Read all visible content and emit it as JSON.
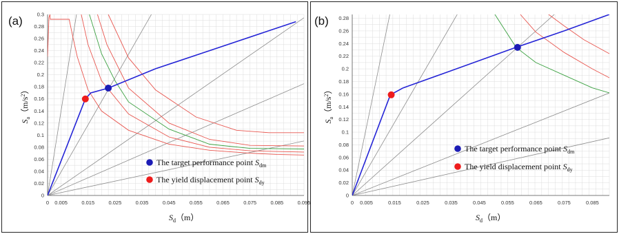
{
  "chart_data": [
    {
      "type": "line",
      "panel_label": "(a)",
      "xlabel_main": "S",
      "xlabel_sub": "d",
      "xlabel_unit": "（m）",
      "ylabel_main": "S",
      "ylabel_sub": "a",
      "ylabel_unit": "（m/s",
      "ylabel_sup": "2",
      "ylabel_close": "）",
      "xlim": [
        0,
        0.095
      ],
      "ylim": [
        0,
        0.3
      ],
      "x_ticks": [
        "0",
        "0.005",
        "0.015",
        "0.025",
        "0.035",
        "0.045",
        "0.055",
        "0.065",
        "0.075",
        "0.085",
        "0.095"
      ],
      "x_tick_values": [
        0,
        0.005,
        0.015,
        0.025,
        0.035,
        0.045,
        0.055,
        0.065,
        0.075,
        0.085,
        0.095
      ],
      "y_ticks": [
        "0",
        "0.02",
        "0.04",
        "0.06",
        "0.08",
        "0.1",
        "0.12",
        "0.14",
        "0.16",
        "0.18",
        "0.2",
        "0.22",
        "0.24",
        "0.26",
        "0.28",
        "0.3"
      ],
      "y_tick_values": [
        0,
        0.02,
        0.04,
        0.06,
        0.08,
        0.1,
        0.12,
        0.14,
        0.16,
        0.18,
        0.2,
        0.22,
        0.24,
        0.26,
        0.28,
        0.3
      ],
      "grid": true,
      "period_lines": {
        "color": "#8c8c8c",
        "slopes": [
          0.95,
          28,
          7.8,
          3.1,
          1.95
        ]
      },
      "demand_curves": [
        {
          "color": "#e8564f",
          "x": [
            0,
            0.0005,
            0.0009,
            0.001,
            0.002,
            0.004,
            0.008,
            0.0095,
            0.011,
            0.015,
            0.02,
            0.03,
            0.045,
            0.06,
            0.075,
            0.085,
            0.095
          ],
          "y": [
            0.23,
            0.295,
            0.3,
            0.292,
            0.292,
            0.292,
            0.292,
            0.26,
            0.23,
            0.175,
            0.14,
            0.108,
            0.085,
            0.075,
            0.07,
            0.068,
            0.067
          ]
        },
        {
          "color": "#e8564f",
          "x": [
            0.0125,
            0.015,
            0.02,
            0.03,
            0.045,
            0.06,
            0.075,
            0.095
          ],
          "y": [
            0.3,
            0.25,
            0.19,
            0.135,
            0.097,
            0.08,
            0.074,
            0.072
          ]
        },
        {
          "color": "#3aa040",
          "x": [
            0.0155,
            0.02,
            0.025,
            0.03,
            0.045,
            0.06,
            0.075,
            0.095
          ],
          "y": [
            0.3,
            0.235,
            0.19,
            0.155,
            0.11,
            0.085,
            0.078,
            0.077
          ]
        },
        {
          "color": "#e8564f",
          "x": [
            0.0185,
            0.022,
            0.03,
            0.045,
            0.06,
            0.075,
            0.095
          ],
          "y": [
            0.3,
            0.25,
            0.178,
            0.12,
            0.093,
            0.083,
            0.082
          ]
        },
        {
          "color": "#e8564f",
          "x": [
            0.0225,
            0.03,
            0.04,
            0.055,
            0.07,
            0.082,
            0.095
          ],
          "y": [
            0.3,
            0.228,
            0.175,
            0.13,
            0.108,
            0.104,
            0.104
          ]
        }
      ],
      "capacity_curve": {
        "color": "#2424d6",
        "x": [
          0,
          0.014,
          0.016,
          0.0225,
          0.04,
          0.06,
          0.08,
          0.092
        ],
        "y": [
          0,
          0.16,
          0.17,
          0.178,
          0.21,
          0.24,
          0.27,
          0.288
        ]
      },
      "points": [
        {
          "name": "performance",
          "x": 0.0225,
          "y": 0.178,
          "color": "#1c1cb5"
        },
        {
          "name": "yield",
          "x": 0.014,
          "y": 0.16,
          "color": "#ee1c1c"
        }
      ],
      "legend": [
        {
          "color": "#1c1cb5",
          "text": "The target performance point ",
          "sym": "S",
          "sub": "dm"
        },
        {
          "color": "#ee1c1c",
          "text": "The yield displacement point ",
          "sym": "S",
          "sub": "dy"
        }
      ]
    },
    {
      "type": "line",
      "panel_label": "(b)",
      "xlabel_main": "S",
      "xlabel_sub": "d",
      "xlabel_unit": "（m）",
      "ylabel_main": "S",
      "ylabel_sub": "a",
      "ylabel_unit": "（m/s",
      "ylabel_sup": "2",
      "ylabel_close": "）",
      "xlim": [
        0,
        0.091
      ],
      "ylim": [
        0,
        0.286
      ],
      "x_ticks": [
        "0",
        "0.005",
        "0.015",
        "0.025",
        "0.035",
        "0.045",
        "0.055",
        "0.065",
        "0.075",
        "0.085"
      ],
      "x_tick_values": [
        0,
        0.005,
        0.015,
        0.025,
        0.035,
        0.045,
        0.055,
        0.065,
        0.075,
        0.085
      ],
      "y_ticks": [
        "0",
        "0.02",
        "0.04",
        "0.06",
        "0.08",
        "0.1",
        "0.12",
        "0.14",
        "0.16",
        "0.18",
        "0.2",
        "0.22",
        "0.24",
        "0.26",
        "0.28"
      ],
      "y_tick_values": [
        0,
        0.02,
        0.04,
        0.06,
        0.08,
        0.1,
        0.12,
        0.14,
        0.16,
        0.18,
        0.2,
        0.22,
        0.24,
        0.26,
        0.28
      ],
      "grid": true,
      "period_lines": {
        "color": "#8c8c8c",
        "slopes": [
          1.0,
          1.78,
          4.0,
          7.7,
          21.5
        ]
      },
      "demand_curves": [
        {
          "color": "#3aa040",
          "x": [
            0.0505,
            0.058,
            0.065,
            0.075,
            0.085,
            0.091
          ],
          "y": [
            0.286,
            0.234,
            0.21,
            0.19,
            0.17,
            0.162
          ]
        },
        {
          "color": "#e8564f",
          "x": [
            0.0595,
            0.065,
            0.075,
            0.085,
            0.091
          ],
          "y": [
            0.286,
            0.258,
            0.226,
            0.2,
            0.186
          ]
        },
        {
          "color": "#e8564f",
          "x": [
            0.0695,
            0.075,
            0.082,
            0.091
          ],
          "y": [
            0.286,
            0.268,
            0.246,
            0.224
          ]
        }
      ],
      "capacity_curve": {
        "color": "#2424d6",
        "x": [
          0,
          0.0135,
          0.018,
          0.035,
          0.058,
          0.075,
          0.091
        ],
        "y": [
          0,
          0.159,
          0.17,
          0.197,
          0.234,
          0.26,
          0.286
        ]
      },
      "points": [
        {
          "name": "performance",
          "x": 0.0585,
          "y": 0.234,
          "color": "#1c1cb5"
        },
        {
          "name": "yield",
          "x": 0.0138,
          "y": 0.159,
          "color": "#ee1c1c"
        }
      ],
      "legend": [
        {
          "color": "#1c1cb5",
          "text": "The target performance point ",
          "sym": "S",
          "sub": "dm"
        },
        {
          "color": "#ee1c1c",
          "text": "The yield displacement point ",
          "sym": "S",
          "sub": "dy"
        }
      ]
    }
  ]
}
